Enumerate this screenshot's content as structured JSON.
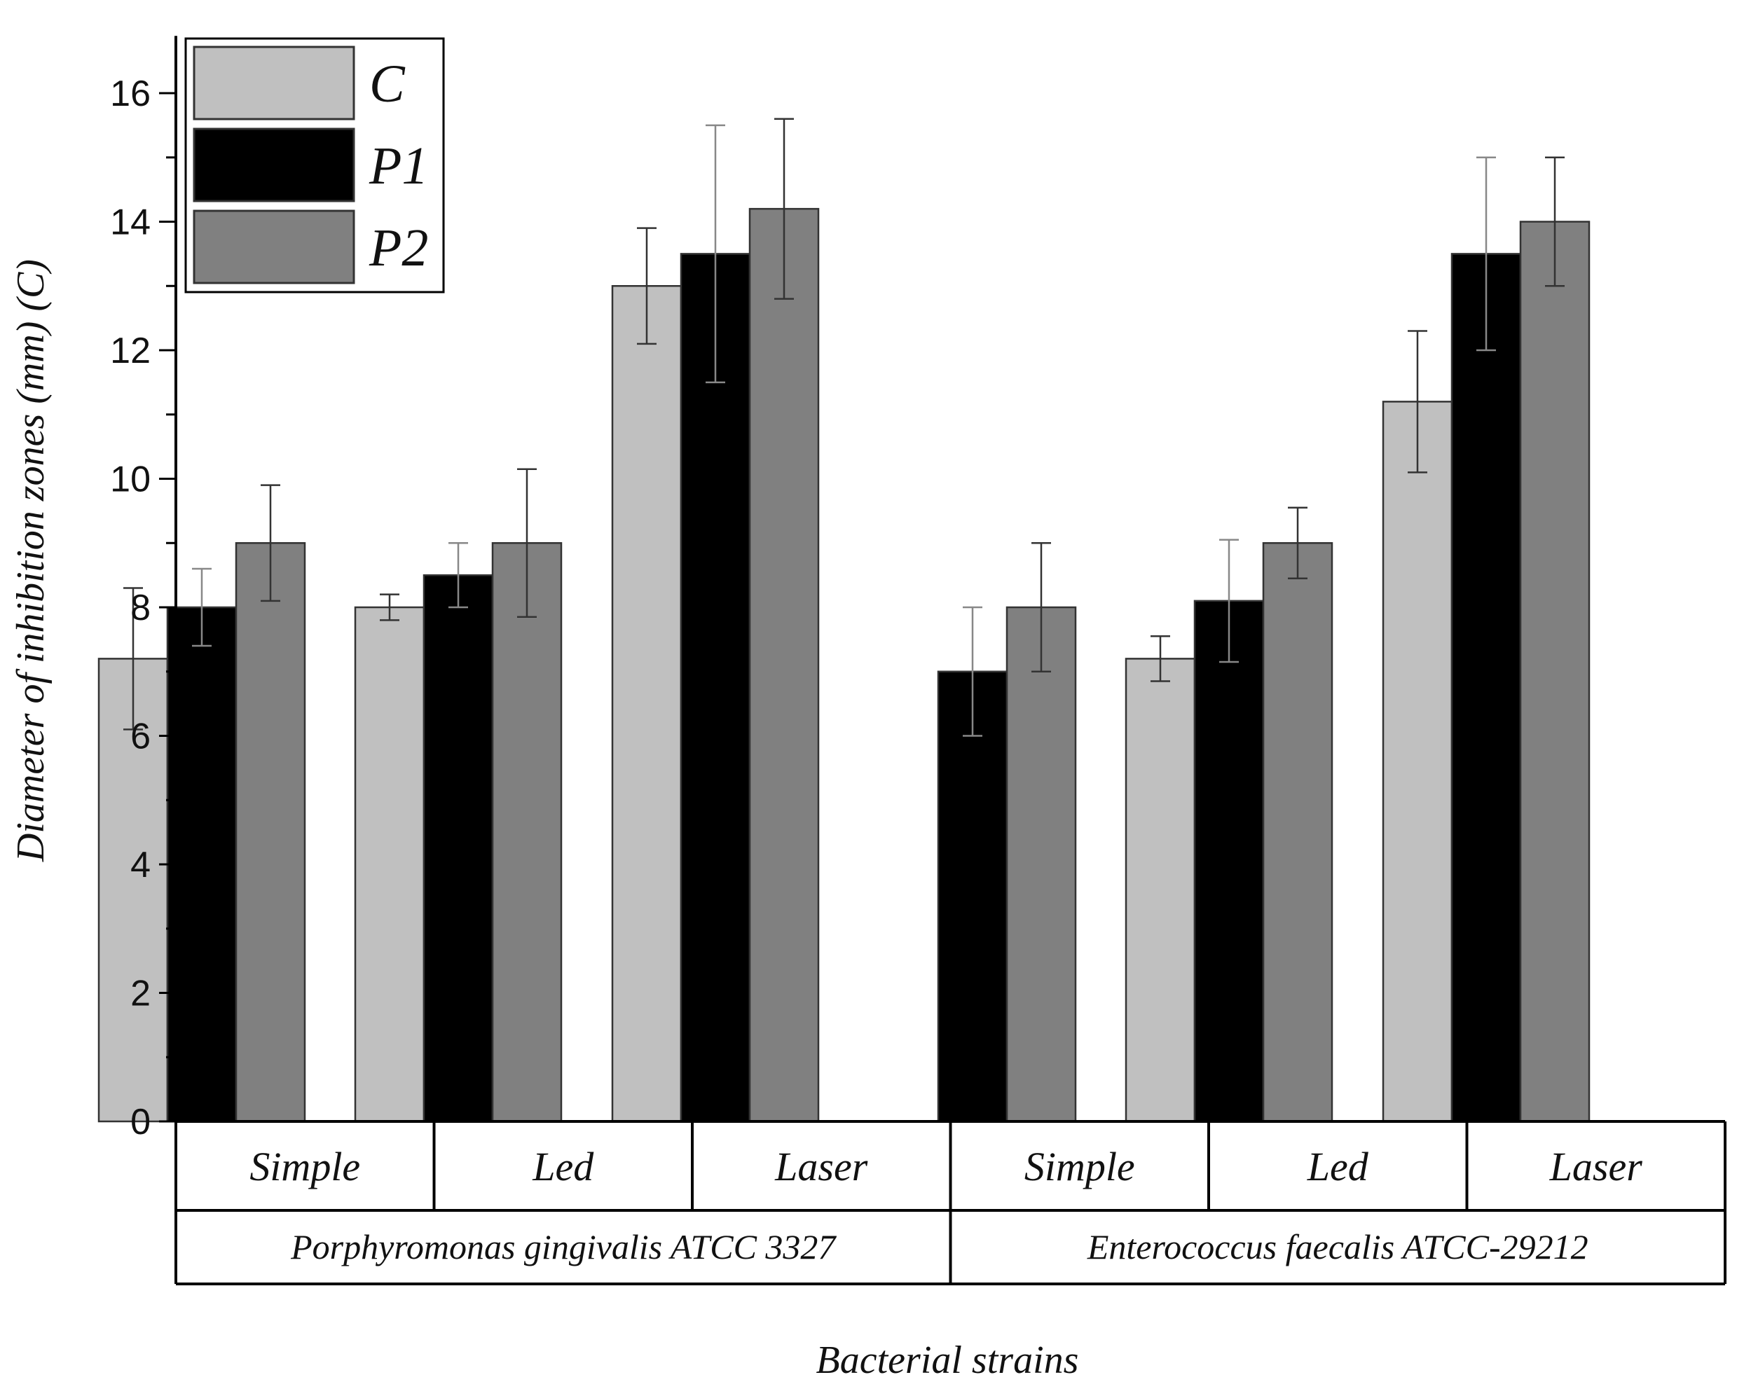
{
  "chart_data": {
    "type": "bar",
    "title": "",
    "ylabel": "Diameter of inhibition zones (mm) (C)",
    "xlabel": "Bacterial strains",
    "ylim": [
      0,
      17
    ],
    "yticks": [
      0,
      2,
      4,
      6,
      8,
      10,
      12,
      14,
      16
    ],
    "grid": false,
    "legend_position": "top-left",
    "groups": [
      {
        "label": "Porphyromonas gingivalis ATCC 3327",
        "categories": [
          "Simple",
          "Led",
          "Laser"
        ]
      },
      {
        "label": "Enterococcus faecalis ATCC-29212",
        "categories": [
          "Simple",
          "Led",
          "Laser"
        ]
      }
    ],
    "categories": [
      "Simple",
      "Led",
      "Laser",
      "Simple",
      "Led",
      "Laser"
    ],
    "series": [
      {
        "name": "C",
        "color": "#c0c0c0",
        "values": [
          7.2,
          8.0,
          13.0,
          0,
          7.2,
          11.2
        ],
        "errors": [
          1.1,
          0.2,
          0.9,
          0,
          0.35,
          1.1
        ]
      },
      {
        "name": "P1",
        "color": "#000000",
        "values": [
          8.0,
          8.5,
          13.5,
          7.0,
          8.1,
          13.5
        ],
        "errors": [
          0.6,
          0.5,
          2.0,
          1.0,
          0.95,
          1.5
        ]
      },
      {
        "name": "P2",
        "color": "#808080",
        "values": [
          9.0,
          9.0,
          14.2,
          8.0,
          9.0,
          14.0
        ],
        "errors": [
          0.9,
          1.15,
          1.4,
          1.0,
          0.55,
          1.0
        ]
      }
    ]
  }
}
